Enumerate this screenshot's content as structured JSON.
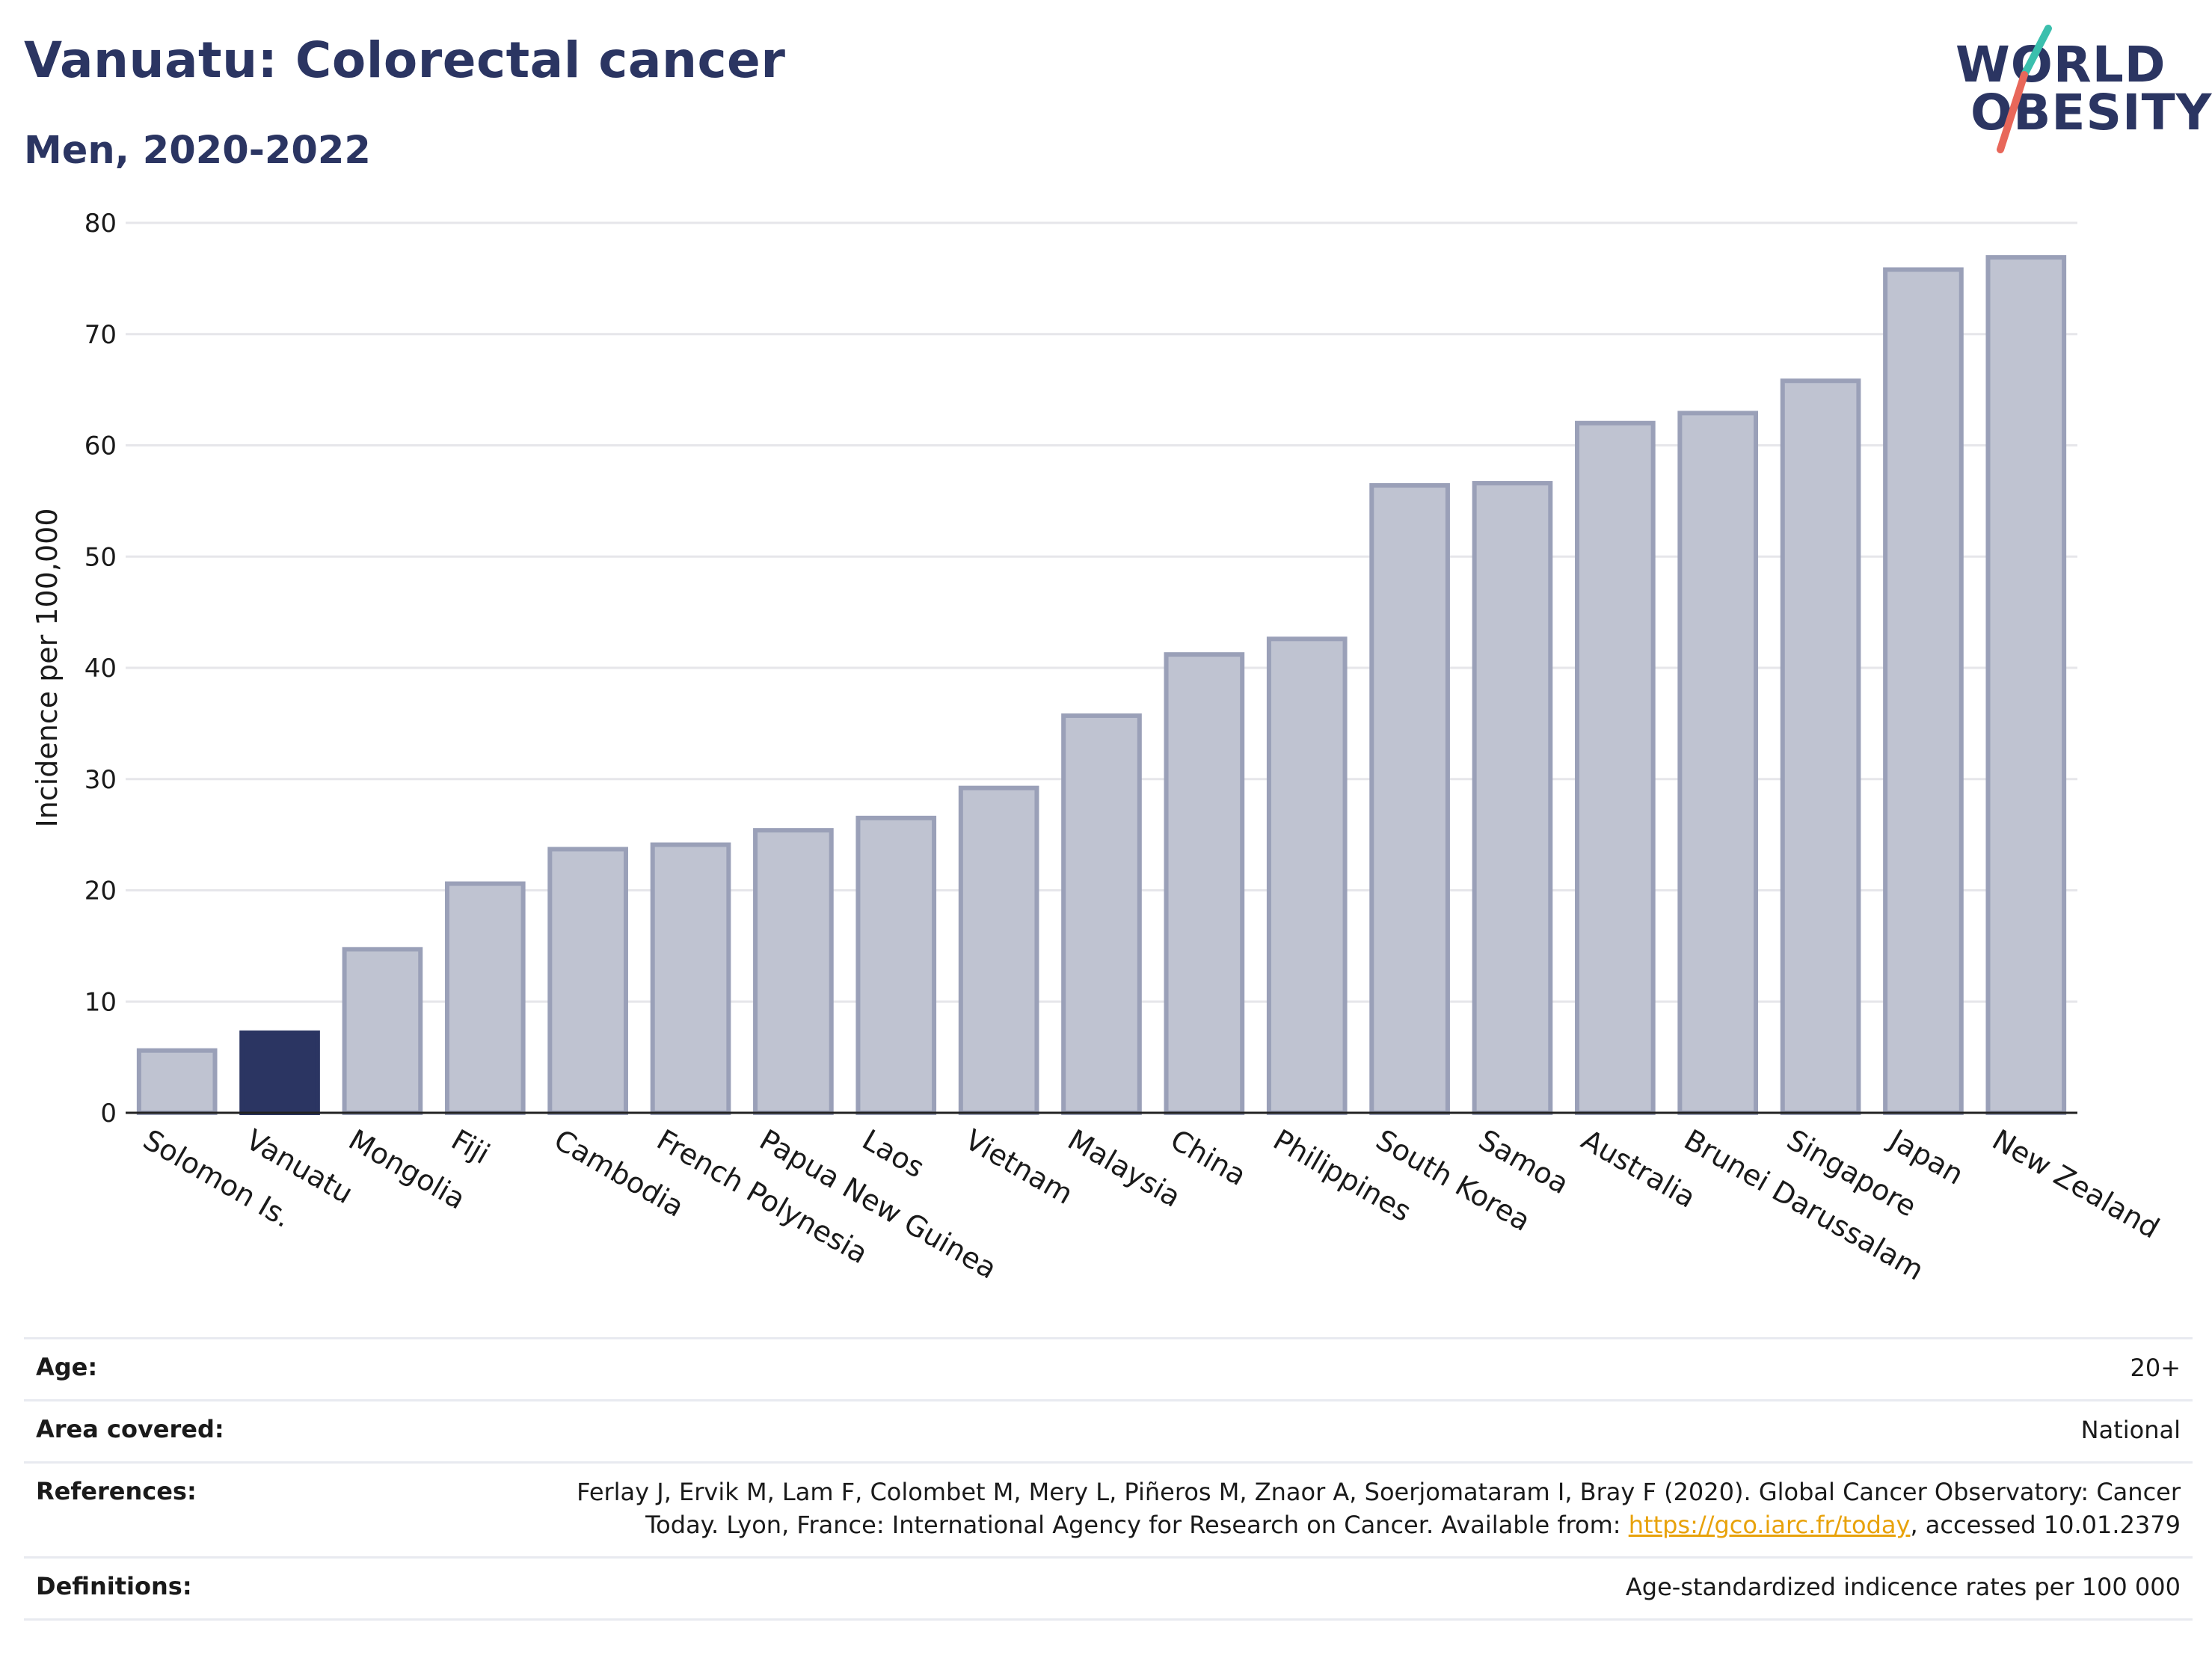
{
  "header": {
    "title": "Vanuatu: Colorectal cancer",
    "subtitle": "Men, 2020-2022"
  },
  "logo": {
    "line1": "WORLD",
    "line2": "OBESITY",
    "accent_teal": "#3bbfad",
    "accent_red": "#e8675a"
  },
  "colors": {
    "highlight": "#2b3562",
    "bar": "#bfc3d1",
    "bar_border": "#9aa0b8",
    "grid": "#e6e6ea",
    "text": "#1a1a1a",
    "link": "#e8a20b"
  },
  "chart_data": {
    "type": "bar",
    "title": "Vanuatu: Colorectal cancer",
    "subtitle": "Men, 2020-2022",
    "ylabel": "Incidence per 100,000",
    "ylim": [
      0,
      80
    ],
    "yticks": [
      0,
      10,
      20,
      30,
      40,
      50,
      60,
      70,
      80
    ],
    "categories": [
      "Solomon Is.",
      "Vanuatu",
      "Mongolia",
      "Fiji",
      "Cambodia",
      "French Polynesia",
      "Papua New Guinea",
      "Laos",
      "Vietnam",
      "Malaysia",
      "China",
      "Philippines",
      "South Korea",
      "Samoa",
      "Australia",
      "Brunei Darussalam",
      "Singapore",
      "Japan",
      "New Zealand"
    ],
    "values": [
      5.6,
      7.2,
      14.7,
      20.6,
      23.7,
      24.1,
      25.4,
      26.5,
      29.2,
      35.7,
      41.2,
      42.6,
      56.4,
      56.6,
      62.0,
      62.9,
      65.8,
      75.8,
      76.9
    ],
    "highlight": "Vanuatu",
    "grid": true
  },
  "info": {
    "age_label": "Age:",
    "age_value": "20+",
    "area_label": "Area covered:",
    "area_value": "National",
    "references_label": "References:",
    "references_line1": "Ferlay J, Ervik M, Lam F, Colombet M, Mery L, Piñeros M, Znaor A, Soerjomataram I, Bray F (2020). Global Cancer Observatory: Cancer",
    "references_line2_pre": "Today. Lyon, France: International Agency for Research on Cancer. Available from: ",
    "references_link": "https://gco.iarc.fr/today",
    "references_line2_post": ", accessed 10.01.2379",
    "definitions_label": "Definitions:",
    "definitions_value": "Age-standardized indicence rates per 100 000"
  }
}
